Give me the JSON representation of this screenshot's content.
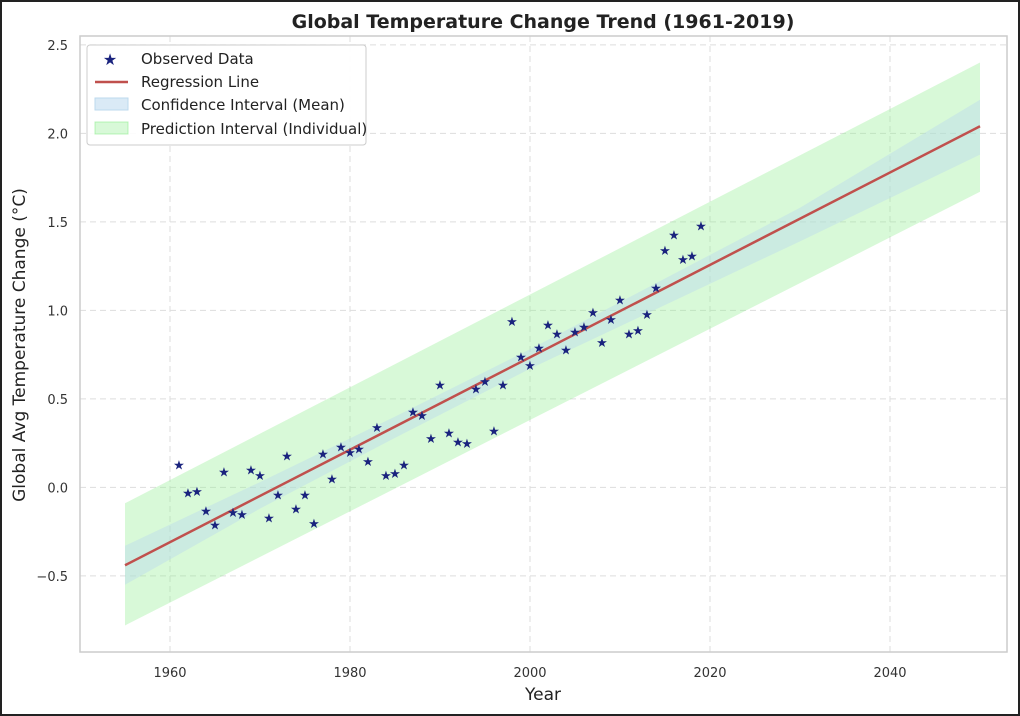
{
  "chart_data": {
    "type": "scatter",
    "title": "Global Temperature Change Trend (1961-2019)",
    "xlabel": "Year",
    "ylabel": "Global Avg Temperature Change (°C)",
    "xlim": [
      1950,
      2053
    ],
    "ylim": [
      -0.93,
      2.55
    ],
    "xticks": [
      1960,
      1980,
      2000,
      2020,
      2040
    ],
    "yticks": [
      -0.5,
      0.0,
      0.5,
      1.0,
      1.5,
      2.0,
      2.5
    ],
    "ytick_labels": [
      "−0.5",
      "0.0",
      "0.5",
      "1.0",
      "1.5",
      "2.0",
      "2.5"
    ],
    "grid": true,
    "legend_position": "top-left",
    "legend": [
      "Observed Data",
      "Regression Line",
      "Confidence Interval (Mean)",
      "Prediction Interval (Individual)"
    ],
    "series": [
      {
        "name": "Observed Data",
        "type": "scatter",
        "marker": "star",
        "color": "#1a237e",
        "x": [
          1961,
          1962,
          1963,
          1964,
          1965,
          1966,
          1967,
          1968,
          1969,
          1970,
          1971,
          1972,
          1973,
          1974,
          1975,
          1976,
          1977,
          1978,
          1979,
          1980,
          1981,
          1982,
          1983,
          1984,
          1985,
          1986,
          1987,
          1988,
          1989,
          1990,
          1991,
          1992,
          1993,
          1994,
          1995,
          1996,
          1997,
          1998,
          1999,
          2000,
          2001,
          2002,
          2003,
          2004,
          2005,
          2006,
          2007,
          2008,
          2009,
          2010,
          2011,
          2012,
          2013,
          2014,
          2015,
          2016,
          2017,
          2018,
          2019
        ],
        "y": [
          0.13,
          -0.03,
          -0.02,
          -0.13,
          -0.21,
          0.09,
          -0.14,
          -0.15,
          0.1,
          0.07,
          -0.17,
          -0.04,
          0.18,
          -0.12,
          -0.04,
          -0.2,
          0.19,
          0.05,
          0.23,
          0.2,
          0.22,
          0.15,
          0.34,
          0.07,
          0.08,
          0.13,
          0.43,
          0.41,
          0.28,
          0.58,
          0.31,
          0.26,
          0.25,
          0.56,
          0.6,
          0.32,
          0.58,
          0.94,
          0.74,
          0.69,
          0.79,
          0.92,
          0.87,
          0.78,
          0.88,
          0.91,
          0.99,
          0.82,
          0.95,
          1.06,
          0.87,
          0.89,
          0.98,
          1.13,
          1.34,
          1.43,
          1.29,
          1.31,
          1.48
        ]
      },
      {
        "name": "Regression Line",
        "type": "line",
        "color": "#c0504d",
        "x": [
          1955,
          2050
        ],
        "y": [
          -0.44,
          2.04
        ]
      },
      {
        "name": "Confidence Interval (Mean)",
        "type": "band",
        "color": "#bcd9ee",
        "x": [
          1955,
          1970,
          1985,
          2000,
          2015,
          2030,
          2050
        ],
        "lower": [
          -0.55,
          -0.12,
          0.28,
          0.67,
          1.03,
          1.39,
          1.88
        ],
        "upper": [
          -0.33,
          0.03,
          0.4,
          0.78,
          1.18,
          1.58,
          2.19
        ]
      },
      {
        "name": "Prediction Interval (Individual)",
        "type": "band",
        "color": "#90ee90",
        "x": [
          1955,
          2050
        ],
        "lower": [
          -0.78,
          1.67
        ],
        "upper": [
          -0.09,
          2.4
        ]
      }
    ]
  }
}
